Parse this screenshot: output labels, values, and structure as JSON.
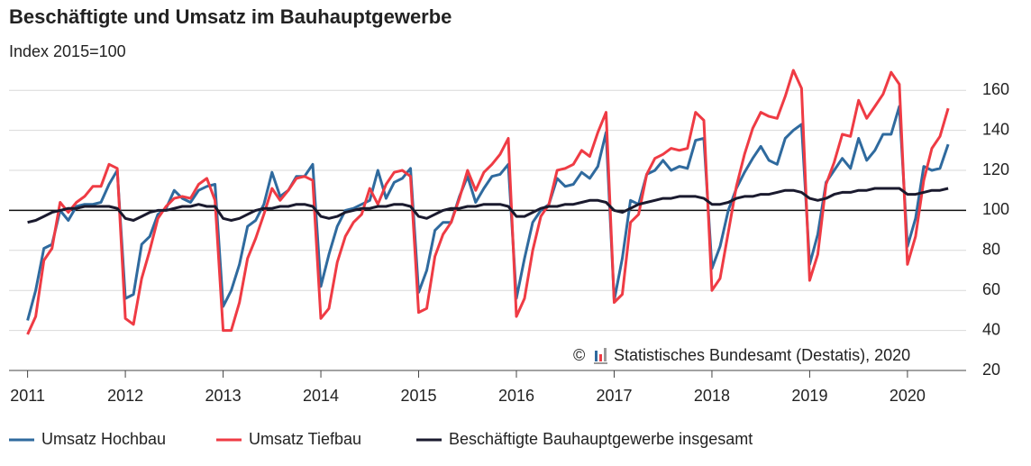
{
  "chart_data": {
    "type": "line",
    "title": "Beschäftigte und Umsatz im Bauhauptgewerbe",
    "subtitle": "Index 2015=100",
    "copyright": "©",
    "source": "Statistisches Bundesamt (Destatis), 2020",
    "x": [
      2011,
      2011.083,
      2011.167,
      2011.25,
      2011.333,
      2011.417,
      2011.5,
      2011.583,
      2011.667,
      2011.75,
      2011.833,
      2011.917,
      2012,
      2012.083,
      2012.167,
      2012.25,
      2012.333,
      2012.417,
      2012.5,
      2012.583,
      2012.667,
      2012.75,
      2012.833,
      2012.917,
      2013,
      2013.083,
      2013.167,
      2013.25,
      2013.333,
      2013.417,
      2013.5,
      2013.583,
      2013.667,
      2013.75,
      2013.833,
      2013.917,
      2014,
      2014.083,
      2014.167,
      2014.25,
      2014.333,
      2014.417,
      2014.5,
      2014.583,
      2014.667,
      2014.75,
      2014.833,
      2014.917,
      2015,
      2015.083,
      2015.167,
      2015.25,
      2015.333,
      2015.417,
      2015.5,
      2015.583,
      2015.667,
      2015.75,
      2015.833,
      2015.917,
      2016,
      2016.083,
      2016.167,
      2016.25,
      2016.333,
      2016.417,
      2016.5,
      2016.583,
      2016.667,
      2016.75,
      2016.833,
      2016.917,
      2017,
      2017.083,
      2017.167,
      2017.25,
      2017.333,
      2017.417,
      2017.5,
      2017.583,
      2017.667,
      2017.75,
      2017.833,
      2017.917,
      2018,
      2018.083,
      2018.167,
      2018.25,
      2018.333,
      2018.417,
      2018.5,
      2018.583,
      2018.667,
      2018.75,
      2018.833,
      2018.917,
      2019,
      2019.083,
      2019.167,
      2019.25,
      2019.333,
      2019.417,
      2019.5,
      2019.583,
      2019.667,
      2019.75,
      2019.833,
      2019.917,
      2020,
      2020.083,
      2020.167,
      2020.25,
      2020.333,
      2020.417
    ],
    "series": [
      {
        "name": "Umsatz Hochbau",
        "color": "#2f6a9e",
        "values": [
          45,
          60,
          81,
          83,
          100,
          95,
          102,
          103,
          103,
          104,
          113,
          120,
          56,
          58,
          83,
          87,
          98,
          101,
          110,
          106,
          104,
          110,
          112,
          113,
          52,
          60,
          73,
          92,
          95,
          103,
          119,
          107,
          110,
          117,
          117,
          123,
          62,
          78,
          92,
          100,
          101,
          103,
          105,
          120,
          106,
          114,
          116,
          121,
          59,
          70,
          90,
          94,
          94,
          107,
          117,
          104,
          111,
          117,
          118,
          123,
          56,
          76,
          94,
          100,
          103,
          116,
          112,
          113,
          119,
          116,
          122,
          139,
          55,
          76,
          105,
          103,
          118,
          120,
          125,
          120,
          122,
          121,
          135,
          136,
          71,
          82,
          100,
          111,
          119,
          126,
          132,
          125,
          123,
          136,
          140,
          143,
          73,
          88,
          114,
          120,
          126,
          121,
          136,
          125,
          130,
          138,
          138,
          152,
          82,
          96,
          122,
          120,
          121,
          133
        ]
      },
      {
        "name": "Umsatz Tiefbau",
        "color": "#ef3b44",
        "values": [
          38,
          47,
          75,
          81,
          104,
          99,
          104,
          107,
          112,
          112,
          123,
          121,
          46,
          43,
          66,
          80,
          96,
          102,
          106,
          107,
          106,
          113,
          116,
          105,
          40,
          40,
          54,
          76,
          86,
          98,
          111,
          105,
          110,
          116,
          117,
          115,
          46,
          51,
          74,
          87,
          94,
          98,
          111,
          103,
          113,
          119,
          120,
          117,
          49,
          51,
          77,
          88,
          94,
          106,
          120,
          110,
          119,
          123,
          128,
          136,
          47,
          56,
          80,
          97,
          103,
          120,
          121,
          123,
          130,
          127,
          139,
          149,
          54,
          58,
          94,
          98,
          118,
          126,
          128,
          131,
          130,
          131,
          149,
          145,
          60,
          66,
          89,
          112,
          128,
          141,
          149,
          147,
          146,
          157,
          170,
          161,
          65,
          78,
          113,
          124,
          138,
          137,
          155,
          146,
          152,
          158,
          169,
          163,
          73,
          87,
          115,
          131,
          137,
          151
        ]
      },
      {
        "name": "Beschäftigte Bauhauptgewerbe insgesamt",
        "color": "#1a1a2e",
        "values": [
          94,
          95,
          97,
          99,
          100,
          101,
          101,
          102,
          102,
          102,
          102,
          101,
          96,
          95,
          97,
          99,
          100,
          100,
          101,
          102,
          102,
          103,
          102,
          102,
          96,
          95,
          96,
          98,
          100,
          101,
          101,
          102,
          102,
          103,
          103,
          102,
          97,
          96,
          97,
          99,
          100,
          101,
          101,
          102,
          102,
          103,
          103,
          102,
          97,
          96,
          98,
          100,
          101,
          101,
          102,
          102,
          103,
          103,
          103,
          102,
          97,
          97,
          99,
          101,
          102,
          102,
          103,
          103,
          104,
          105,
          105,
          104,
          100,
          99,
          101,
          103,
          104,
          105,
          106,
          106,
          107,
          107,
          107,
          106,
          103,
          103,
          104,
          106,
          107,
          107,
          108,
          108,
          109,
          110,
          110,
          109,
          106,
          105,
          106,
          108,
          109,
          109,
          110,
          110,
          111,
          111,
          111,
          111,
          108,
          108,
          109,
          110,
          110,
          111
        ]
      }
    ],
    "xlim": [
      2010.81,
      2020.6
    ],
    "xticks": [
      2011,
      2012,
      2013,
      2014,
      2015,
      2016,
      2017,
      2018,
      2019,
      2020
    ],
    "ylim": [
      20,
      170
    ],
    "yticks": [
      20,
      40,
      60,
      80,
      100,
      120,
      140,
      160
    ],
    "reference_line": 100,
    "grid": true,
    "legend": "bottom"
  }
}
